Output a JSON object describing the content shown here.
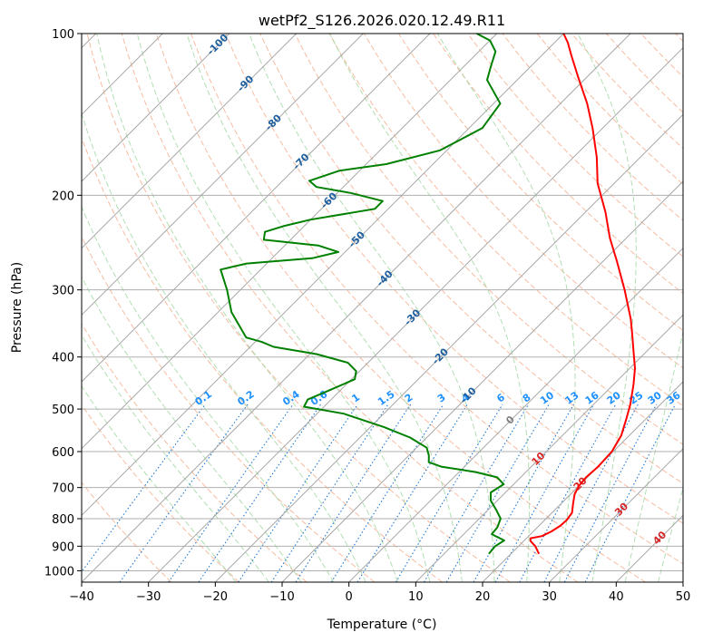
{
  "chart_data": {
    "type": "skew-t",
    "title": "wetPf2_S126.2026.020.12.49.R11",
    "xlabel": "Temperature (°C)",
    "ylabel": "Pressure (hPa)",
    "xlim": [
      -40,
      50
    ],
    "ylim": [
      1050,
      100
    ],
    "xticks": [
      -40,
      -30,
      -20,
      -10,
      0,
      10,
      20,
      30,
      40,
      50
    ],
    "yticks": [
      100,
      200,
      300,
      400,
      500,
      600,
      700,
      800,
      900,
      1000
    ],
    "grid": true,
    "colors": {
      "temperature": "#ff0000",
      "dewpoint": "#008000",
      "isotherm": "#999999",
      "dry_adiabat": "#f4a582",
      "moist_adiabat": "#a6d8a6",
      "mixing_ratio": "#1f78d4",
      "label_isotherm_cold": "#1f5f9f",
      "label_mixing_ratio": "#1e90ff",
      "label_isotherm_warm": "#d62728"
    },
    "isotherm_labels": {
      "cold": [
        "-100",
        "-90",
        "-80",
        "-70",
        "-60",
        "-50",
        "-40",
        "-30",
        "-20",
        "-10"
      ],
      "zero": "0",
      "warm": [
        "10",
        "20",
        "30",
        "40"
      ]
    },
    "mixing_ratio_labels": [
      "0.1",
      "0.2",
      "0.4",
      "0.6",
      "1",
      "1.5",
      "2",
      "3",
      "4",
      "6",
      "8",
      "10",
      "13",
      "16",
      "20",
      "25",
      "30",
      "36"
    ],
    "series": [
      {
        "name": "Temperature",
        "points": [
          [
            930,
            24.2
          ],
          [
            900,
            22.5
          ],
          [
            880,
            21.0
          ],
          [
            870,
            20.6
          ],
          [
            862,
            22.0
          ],
          [
            845,
            22.7
          ],
          [
            825,
            23.2
          ],
          [
            805,
            23.3
          ],
          [
            780,
            23.0
          ],
          [
            750,
            21.8
          ],
          [
            720,
            20.6
          ],
          [
            695,
            20.0
          ],
          [
            670,
            19.8
          ],
          [
            640,
            20.0
          ],
          [
            600,
            19.8
          ],
          [
            560,
            18.8
          ],
          [
            520,
            17.0
          ],
          [
            490,
            15.5
          ],
          [
            450,
            13.0
          ],
          [
            420,
            10.8
          ],
          [
            390,
            8.0
          ],
          [
            365,
            5.5
          ],
          [
            340,
            2.8
          ],
          [
            300,
            -2.5
          ],
          [
            265,
            -8.0
          ],
          [
            240,
            -12.5
          ],
          [
            215,
            -17.0
          ],
          [
            190,
            -22.5
          ],
          [
            170,
            -26.5
          ],
          [
            150,
            -31.5
          ],
          [
            135,
            -36.0
          ],
          [
            120,
            -41.5
          ],
          [
            110,
            -45.5
          ],
          [
            104,
            -48.0
          ],
          [
            100,
            -50.0
          ]
        ]
      },
      {
        "name": "Dewpoint",
        "points": [
          [
            930,
            16.7
          ],
          [
            900,
            16.5
          ],
          [
            878,
            17.0
          ],
          [
            855,
            14.2
          ],
          [
            830,
            14.0
          ],
          [
            800,
            13.2
          ],
          [
            770,
            11.2
          ],
          [
            740,
            9.0
          ],
          [
            715,
            7.8
          ],
          [
            690,
            8.5
          ],
          [
            670,
            6.5
          ],
          [
            655,
            2.5
          ],
          [
            640,
            -3.5
          ],
          [
            628,
            -6.0
          ],
          [
            610,
            -7.0
          ],
          [
            590,
            -8.5
          ],
          [
            565,
            -12.5
          ],
          [
            540,
            -18.0
          ],
          [
            510,
            -26.0
          ],
          [
            495,
            -33.0
          ],
          [
            480,
            -33.5
          ],
          [
            460,
            -31.5
          ],
          [
            440,
            -29.5
          ],
          [
            425,
            -30.5
          ],
          [
            410,
            -33.0
          ],
          [
            395,
            -39.0
          ],
          [
            383,
            -46.5
          ],
          [
            375,
            -49.0
          ],
          [
            368,
            -52.0
          ],
          [
            330,
            -58.0
          ],
          [
            300,
            -62.0
          ],
          [
            275,
            -66.0
          ],
          [
            268,
            -63.0
          ],
          [
            262,
            -54.0
          ],
          [
            255,
            -51.0
          ],
          [
            248,
            -55.0
          ],
          [
            242,
            -64.0
          ],
          [
            234,
            -65.0
          ],
          [
            228,
            -63.0
          ],
          [
            222,
            -60.0
          ],
          [
            212,
            -52.0
          ],
          [
            205,
            -52.0
          ],
          [
            198,
            -58.0
          ],
          [
            193,
            -64.0
          ],
          [
            188,
            -66.0
          ],
          [
            180,
            -63.0
          ],
          [
            175,
            -57.0
          ],
          [
            165,
            -51.0
          ],
          [
            150,
            -48.0
          ],
          [
            135,
            -49.0
          ],
          [
            122,
            -54.5
          ],
          [
            115,
            -56.0
          ],
          [
            108,
            -57.5
          ],
          [
            103,
            -60.0
          ],
          [
            100,
            -63.0
          ]
        ]
      }
    ]
  }
}
